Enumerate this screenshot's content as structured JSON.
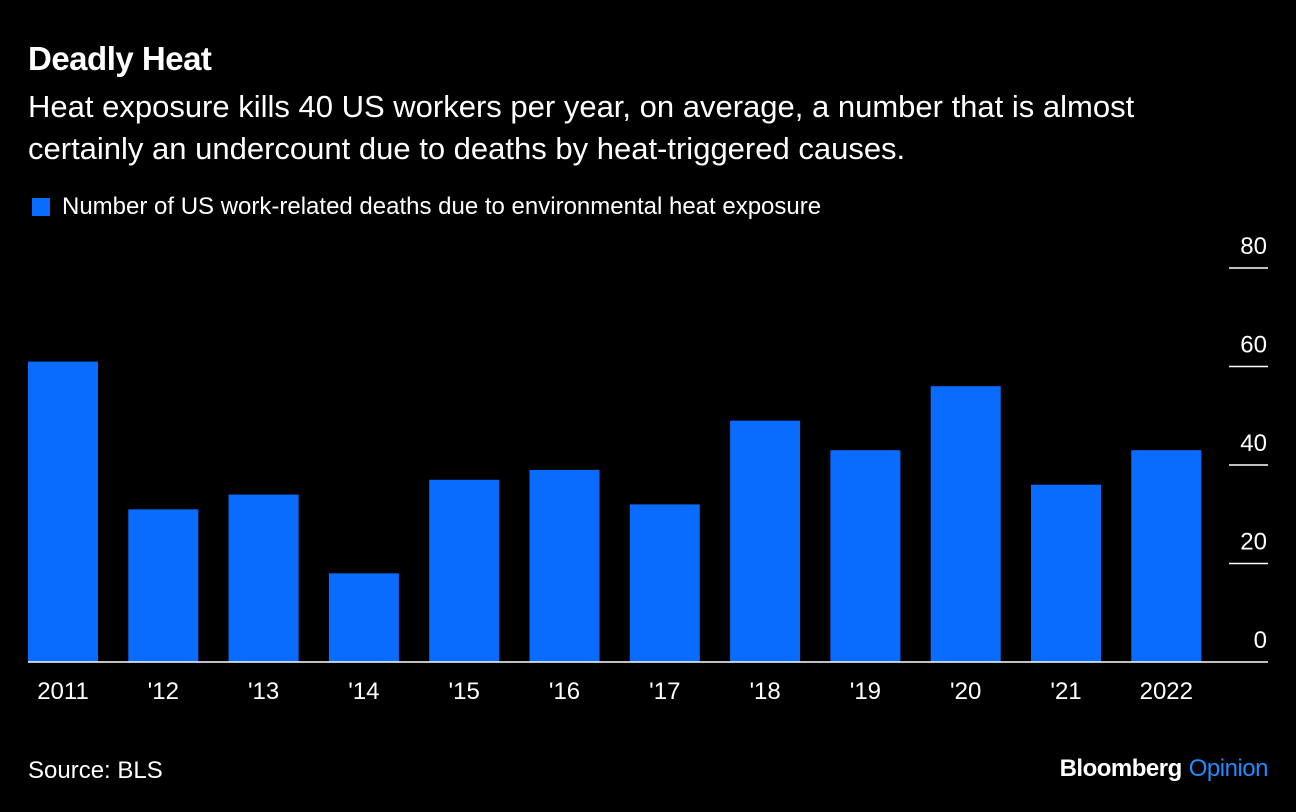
{
  "header": {
    "title": "Deadly Heat",
    "subtitle": "Heat exposure kills 40 US workers per year, on average, a number that is almost certainly an undercount due to deaths by heat-triggered causes."
  },
  "legend": {
    "label": "Number of US work-related deaths due to environmental heat exposure"
  },
  "footer": {
    "source": "Source: BLS",
    "brand_name": "Bloomberg",
    "brand_section": "Opinion"
  },
  "colors": {
    "background": "#000000",
    "bar": "#0a6cff",
    "text": "#ffffff",
    "brand_accent": "#1f8bff"
  },
  "chart_data": {
    "type": "bar",
    "title": "Deadly Heat",
    "categories": [
      "2011",
      "'12",
      "'13",
      "'14",
      "'15",
      "'16",
      "'17",
      "'18",
      "'19",
      "'20",
      "'21",
      "2022"
    ],
    "series": [
      {
        "name": "Number of US work-related deaths due to environmental heat exposure",
        "values": [
          61,
          31,
          34,
          18,
          37,
          39,
          32,
          49,
          43,
          56,
          36,
          43
        ]
      }
    ],
    "xlabel": "",
    "ylabel": "",
    "ylim": [
      0,
      80
    ],
    "yticks": [
      0,
      20,
      40,
      60,
      80
    ],
    "grid": false,
    "axis_side": "right",
    "legend_position": "top-left"
  }
}
